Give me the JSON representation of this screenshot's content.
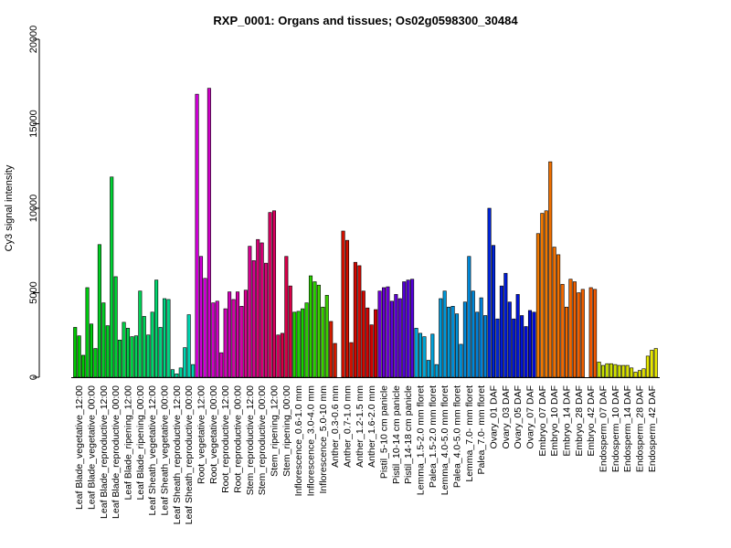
{
  "chart_data": {
    "type": "bar",
    "title": "RXP_0001: Organs and tissues; Os02g0598300_30484",
    "xlabel": "",
    "ylabel": "Cy3 signal intensity",
    "ylim": [
      0,
      20000
    ],
    "yticks": [
      0,
      5000,
      10000,
      15000,
      20000
    ],
    "grid": false,
    "legend": "none",
    "x_tick_labels": [
      "Leaf Blade_vegetative_12:00",
      "Leaf Blade_vegetative_00:00",
      "Leaf Blade_reproductive_12:00",
      "Leaf Blade_reproductive_00:00",
      "Leaf Blade_ripening_12:00",
      "Leaf Blade_ripening_00:00",
      "Leaf Sheath_vegetative_12:00",
      "Leaf Sheath_vegetative_00:00",
      "Leaf Sheath_reproductive_12:00",
      "Leaf Sheath_reproductive_00:00",
      "Root_vegetative_12:00",
      "Root_vegetative_00:00",
      "Root_reproductive_12:00",
      "Root_reproductive_00:00",
      "Stem_reproductive_12:00",
      "Stem_reproductive_00:00",
      "Stem_ripening_12:00",
      "Stem_ripening_00:00",
      "Inflorescence_0.6-1.0 mm",
      "Inflorescence_3.0-4.0 mm",
      "Inflorescence_5.0-10 mm",
      "Anther_0.3-0.6 mm",
      "Anther_0.7-1.0 mm",
      "Anther_1.2-1.5 mm",
      "Anther_1.6-2.0 mm",
      "Pistil_5-10 cm panicle",
      "Pistil_10-14 cm panicle",
      "Pistil_14-18 cm panicle",
      "Lemma_1.5-2.0 mm floret",
      "Palea_1.5-2.0 mm floret",
      "Lemma_4.0-5.0 mm floret",
      "Palea_4.0-5.0 mm floret",
      "Lemma_7.0- mm floret",
      "Palea_7.0- mm floret",
      "Ovary_01 DAF",
      "Ovary_03 DAF",
      "Ovary_05 DAF",
      "Ovary_07 DAF",
      "Embryo_07 DAF",
      "Embryo_10 DAF",
      "Embryo_14 DAF",
      "Embryo_28 DAF",
      "Embryo_42 DAF",
      "Endosperm_07 DAF",
      "Endosperm_10 DAF",
      "Endosperm_14 DAF",
      "Endosperm_28 DAF",
      "Endosperm_42 DAF"
    ],
    "values": [
      2950,
      2450,
      1300,
      5300,
      3150,
      1700,
      7850,
      4400,
      3050,
      11850,
      5950,
      2200,
      3250,
      2900,
      2400,
      2450,
      5100,
      3600,
      2500,
      3850,
      5750,
      2950,
      4650,
      4600,
      450,
      200,
      550,
      1750,
      3700,
      750,
      16750,
      7150,
      5850,
      17100,
      4400,
      4500,
      1450,
      4050,
      5050,
      4600,
      5050,
      4200,
      5150,
      7750,
      6900,
      8150,
      7950,
      6750,
      9750,
      9850,
      2500,
      2600,
      7150,
      5400,
      3850,
      3900,
      4050,
      4400,
      6000,
      5650,
      5450,
      4150,
      4850,
      3300,
      2000,
      null,
      8650,
      8100,
      2050,
      6800,
      6600,
      5100,
      4100,
      3100,
      4000,
      5100,
      5300,
      5350,
      4500,
      4900,
      4650,
      5650,
      5750,
      5800,
      2900,
      2600,
      2400,
      1000,
      2550,
      750,
      4650,
      5100,
      4150,
      4200,
      3750,
      1950,
      4450,
      7150,
      5100,
      3850,
      4700,
      3650,
      10000,
      7800,
      3450,
      5400,
      6150,
      4450,
      3450,
      4900,
      3650,
      3000,
      3950,
      3850,
      8500,
      9700,
      9850,
      12750,
      7700,
      7250,
      5500,
      4150,
      5800,
      5650,
      5000,
      5200,
      null,
      5300,
      5200,
      900,
      700,
      800,
      800,
      750,
      700,
      700,
      700,
      550,
      300,
      400,
      500,
      1250,
      1600,
      1700
    ],
    "group_colors": [
      "#00C800",
      "#00CB10",
      "#00CE22",
      "#00D034",
      "#00D246",
      "#00D458",
      "#00D46C",
      "#00D482",
      "#00D498",
      "#00D4B0",
      "#D000D8",
      "#D000C8",
      "#D000B8",
      "#D400A8",
      "#D80090",
      "#D80078",
      "#D80060",
      "#D80048",
      "#1AD000",
      "#2AD000",
      "#3CD000",
      "#D41C00",
      "#D41000",
      "#D40800",
      "#D40000",
      "#6C00D8",
      "#6000D8",
      "#5400D8",
      "#00A8D8",
      "#00A0D8",
      "#0098D8",
      "#0090D8",
      "#0088D8",
      "#0080D8",
      "#0024D8",
      "#001CD8",
      "#0014D8",
      "#000CD8",
      "#F07800",
      "#F07000",
      "#F06800",
      "#F06000",
      "#F05800",
      "#C8E000",
      "#D0E000",
      "#D8E000",
      "#E0E000",
      "#E8E800"
    ]
  }
}
